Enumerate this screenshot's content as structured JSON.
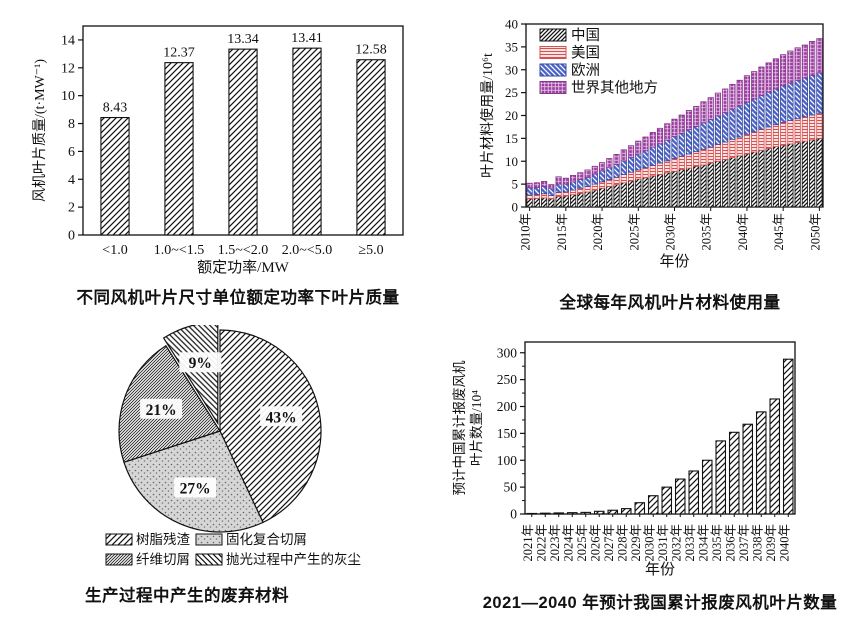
{
  "chart_data": [
    {
      "id": "blade-mass",
      "type": "bar",
      "title": "不同风机叶片尺寸单位额定功率下叶片质量",
      "categories": [
        "<1.0",
        "1.0~<1.5",
        "1.5~<2.0",
        "2.0~<5.0",
        "≥5.0"
      ],
      "values": [
        8.43,
        12.37,
        13.34,
        13.41,
        12.58
      ],
      "data_labels": [
        "8.43",
        "12.37",
        "13.34",
        "13.41",
        "12.58"
      ],
      "xlabel": "额定功率/MW",
      "ylabel": "风机叶片质量/(t·MW⁻¹)",
      "ylim": [
        0,
        15
      ],
      "yticks": [
        0,
        2,
        4,
        6,
        8,
        10,
        12,
        14
      ],
      "bar_pattern": "black-diagonal-hatch",
      "grid": false
    },
    {
      "id": "material-usage",
      "type": "stacked-bar",
      "title": "全球每年风机叶片材料使用量",
      "year_start": 2010,
      "year_end": 2050,
      "x_tick_labels": [
        "2010年",
        "2015年",
        "2020年",
        "2025年",
        "2030年",
        "2035年",
        "2040年",
        "2045年",
        "2050年"
      ],
      "xlabel": "年份",
      "ylabel": "叶片材料使用量/10⁶t",
      "ylim": [
        0,
        40
      ],
      "yticks": [
        0,
        5,
        10,
        15,
        20,
        25,
        30,
        35,
        40
      ],
      "legend_position": "top-left-inside",
      "series": [
        {
          "name": "中国",
          "pattern": "black-diagonal-hatch",
          "color": "#1a1a1a",
          "values": [
            1.8,
            1.9,
            2.0,
            1.8,
            2.3,
            2.4,
            2.7,
            3.0,
            3.3,
            3.7,
            4.1,
            4.5,
            4.9,
            5.3,
            5.7,
            6.1,
            6.4,
            6.8,
            7.1,
            7.5,
            7.8,
            8.2,
            8.5,
            8.9,
            9.2,
            9.6,
            10.0,
            10.4,
            10.8,
            11.2,
            11.6,
            12.0,
            12.4,
            12.8,
            13.2,
            13.5,
            13.8,
            14.1,
            14.4,
            14.7,
            15.0
          ]
        },
        {
          "name": "美国",
          "pattern": "red-horizontal-lines",
          "color": "#d94f4f",
          "values": [
            0.8,
            0.8,
            0.9,
            0.7,
            0.9,
            0.9,
            1.0,
            1.1,
            1.2,
            1.3,
            1.4,
            1.5,
            1.6,
            1.8,
            1.9,
            2.0,
            2.2,
            2.3,
            2.5,
            2.6,
            2.8,
            2.9,
            3.1,
            3.2,
            3.4,
            3.5,
            3.7,
            3.8,
            4.0,
            4.1,
            4.3,
            4.4,
            4.6,
            4.7,
            4.8,
            5.0,
            5.1,
            5.2,
            5.3,
            5.4,
            5.5
          ]
        },
        {
          "name": "欧洲",
          "pattern": "blue-diagonal-stripes",
          "color": "#35479c",
          "values": [
            1.6,
            1.6,
            1.6,
            1.5,
            1.8,
            1.7,
            1.8,
            1.9,
            2.0,
            2.2,
            2.4,
            2.6,
            2.8,
            3.0,
            3.2,
            3.5,
            3.7,
            4.0,
            4.2,
            4.5,
            4.8,
            5.0,
            5.3,
            5.5,
            5.8,
            6.0,
            6.2,
            6.4,
            6.6,
            6.8,
            7.0,
            7.2,
            7.4,
            7.6,
            7.8,
            8.0,
            8.2,
            8.4,
            8.5,
            8.7,
            8.8
          ]
        },
        {
          "name": "世界其他地方",
          "pattern": "purple-grid",
          "color": "#8a3590",
          "values": [
            1.0,
            1.0,
            1.1,
            0.9,
            1.6,
            1.3,
            1.4,
            1.5,
            1.6,
            1.7,
            1.8,
            2.0,
            2.2,
            2.4,
            2.6,
            2.8,
            3.0,
            3.2,
            3.4,
            3.6,
            3.8,
            4.0,
            4.2,
            4.4,
            4.6,
            4.8,
            5.0,
            5.2,
            5.4,
            5.6,
            5.8,
            6.0,
            6.2,
            6.4,
            6.6,
            6.8,
            7.0,
            7.1,
            7.2,
            7.4,
            7.5
          ]
        }
      ]
    },
    {
      "id": "waste-pie",
      "type": "pie",
      "title": "生产过程中产生的废弃材料",
      "start": "top",
      "direction": "clockwise",
      "slices": [
        {
          "label": "树脂残渣",
          "value_pct": 43,
          "display": "43%",
          "pattern": "black-diagonal-hatch",
          "exploded": false
        },
        {
          "label": "固化复合切屑",
          "value_pct": 27,
          "display": "27%",
          "pattern": "gray-speckle",
          "exploded": false
        },
        {
          "label": "纤维切屑",
          "value_pct": 21,
          "display": "21%",
          "pattern": "dense-diagonal-hatch",
          "exploded": false
        },
        {
          "label": "抛光过程中产生的灰尘",
          "value_pct": 9,
          "display": "9%",
          "pattern": "back-diagonal-hatch",
          "exploded": true
        }
      ]
    },
    {
      "id": "scrap-blades",
      "type": "bar",
      "title": "2021—2040 年预计我国累计报废风机叶片数量",
      "categories": [
        "2021年",
        "2022年",
        "2023年",
        "2024年",
        "2025年",
        "2026年",
        "2027年",
        "2028年",
        "2029年",
        "2030年",
        "2031年",
        "2032年",
        "2033年",
        "2034年",
        "2035年",
        "2036年",
        "2037年",
        "2038年",
        "2039年",
        "2040年"
      ],
      "values": [
        1,
        1.5,
        2,
        2.5,
        3,
        5,
        7,
        10,
        21,
        34,
        50,
        65,
        80,
        100,
        136,
        152,
        167,
        190,
        214,
        288
      ],
      "xlabel": "年份",
      "ylabel_lines": [
        "预计中国累计报废风机",
        "叶片数量/10⁴"
      ],
      "ylim": [
        0,
        320
      ],
      "yticks": [
        0,
        50,
        100,
        150,
        200,
        250,
        300
      ],
      "y_minor_step": 25,
      "x_tick_rotation": -90,
      "bar_pattern": "black-diagonal-hatch",
      "grid": false
    }
  ]
}
